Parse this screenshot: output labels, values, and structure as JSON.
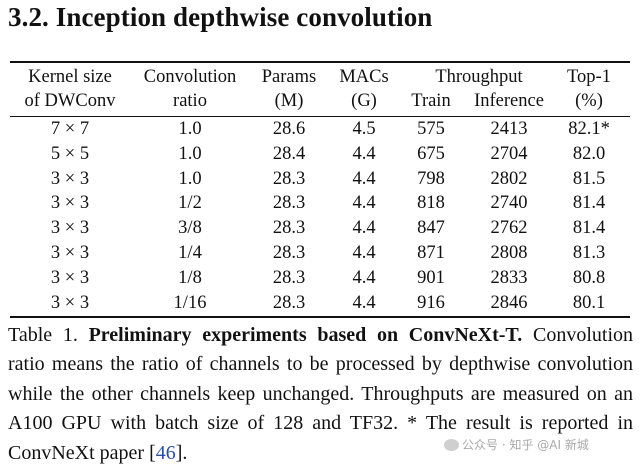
{
  "section_heading": "3.2. Inception depthwise convolution",
  "table": {
    "headers": {
      "kernel_line1": "Kernel size",
      "kernel_line2": "of DWConv",
      "ratio_line1": "Convolution",
      "ratio_line2": "ratio",
      "params_line1": "Params",
      "params_line2": "(M)",
      "macs_line1": "MACs",
      "macs_line2": "(G)",
      "throughput": "Throughput",
      "train": "Train",
      "inference": "Inference",
      "top1_line1": "Top-1",
      "top1_line2": "(%)"
    },
    "rows": [
      {
        "kernel": "7 × 7",
        "ratio": "1.0",
        "params": "28.6",
        "macs": "4.5",
        "train": "575",
        "inference": "2413",
        "top1": "82.1*"
      },
      {
        "kernel": "5 × 5",
        "ratio": "1.0",
        "params": "28.4",
        "macs": "4.4",
        "train": "675",
        "inference": "2704",
        "top1": "82.0"
      },
      {
        "kernel": "3 × 3",
        "ratio": "1.0",
        "params": "28.3",
        "macs": "4.4",
        "train": "798",
        "inference": "2802",
        "top1": "81.5"
      },
      {
        "kernel": "3 × 3",
        "ratio": "1/2",
        "params": "28.3",
        "macs": "4.4",
        "train": "818",
        "inference": "2740",
        "top1": "81.4"
      },
      {
        "kernel": "3 × 3",
        "ratio": "3/8",
        "params": "28.3",
        "macs": "4.4",
        "train": "847",
        "inference": "2762",
        "top1": "81.4"
      },
      {
        "kernel": "3 × 3",
        "ratio": "1/4",
        "params": "28.3",
        "macs": "4.4",
        "train": "871",
        "inference": "2808",
        "top1": "81.3"
      },
      {
        "kernel": "3 × 3",
        "ratio": "1/8",
        "params": "28.3",
        "macs": "4.4",
        "train": "901",
        "inference": "2833",
        "top1": "80.8"
      },
      {
        "kernel": "3 × 3",
        "ratio": "1/16",
        "params": "28.3",
        "macs": "4.4",
        "train": "916",
        "inference": "2846",
        "top1": "80.1"
      }
    ]
  },
  "caption": {
    "label": "Table 1.",
    "bold_title": "Preliminary experiments based on ConvNeXt-T.",
    "text": "Convolution ratio means the ratio of channels to be processed by depthwise convolution while the other channels keep unchanged. Throughputs are measured on an A100 GPU with batch size of 128 and TF32. * The result is reported in ConvNeXt paper [",
    "ref": "46",
    "end": "]."
  },
  "watermark": "公众号 · 知乎 @AI 新城"
}
